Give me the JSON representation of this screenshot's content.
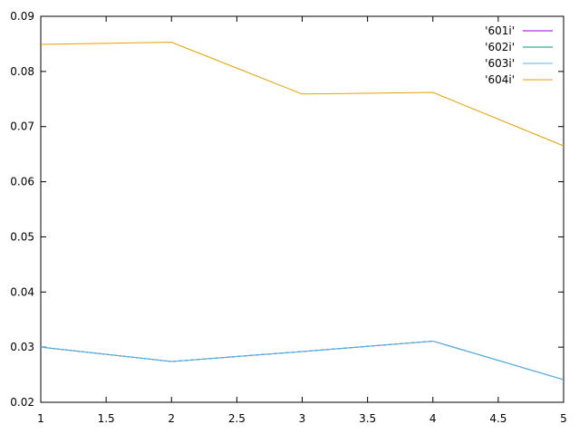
{
  "chart_data": {
    "type": "line",
    "title": "",
    "xlabel": "",
    "ylabel": "",
    "xlim": [
      1,
      5
    ],
    "ylim": [
      0.02,
      0.09
    ],
    "grid": false,
    "legend_position": "top-right",
    "x_ticks": [
      1,
      1.5,
      2,
      2.5,
      3,
      3.5,
      4,
      4.5,
      5
    ],
    "x_tick_labels": [
      "1",
      "1.5",
      "2",
      "2.5",
      "3",
      "3.5",
      "4",
      "4.5",
      "5"
    ],
    "y_ticks": [
      0.02,
      0.03,
      0.04,
      0.05,
      0.06,
      0.07,
      0.08,
      0.09
    ],
    "y_tick_labels": [
      "0.02",
      "0.03",
      "0.04",
      "0.05",
      "0.06",
      "0.07",
      "0.08",
      "0.09"
    ],
    "x": [
      1,
      2,
      3,
      4,
      5
    ],
    "series": [
      {
        "name": "'601i'",
        "color": "#9400d3",
        "values": [
          0.03,
          0.0274,
          0.0292,
          0.0311,
          0.0241
        ]
      },
      {
        "name": "'602i'",
        "color": "#009e73",
        "values": [
          0.03,
          0.0274,
          0.0292,
          0.0311,
          0.0241
        ]
      },
      {
        "name": "'603i'",
        "color": "#56b4e9",
        "values": [
          0.03,
          0.0274,
          0.0292,
          0.0311,
          0.0241
        ]
      },
      {
        "name": "'604i'",
        "color": "#e69f00",
        "values": [
          0.0849,
          0.0853,
          0.0759,
          0.0762,
          0.0665
        ]
      }
    ]
  }
}
